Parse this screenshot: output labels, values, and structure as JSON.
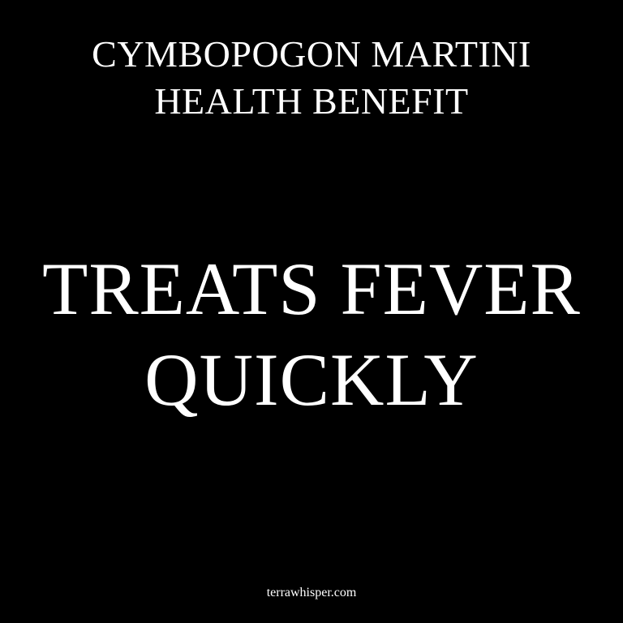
{
  "colors": {
    "background": "#000000",
    "text": "#ffffff"
  },
  "title": {
    "line1": "CYMBOPOGON MARTINI",
    "line2": "HEALTH BENEFIT"
  },
  "headline": {
    "line1": "TREATS FEVER",
    "line2": "QUICKLY"
  },
  "footer": {
    "site": "terrawhisper.com"
  }
}
